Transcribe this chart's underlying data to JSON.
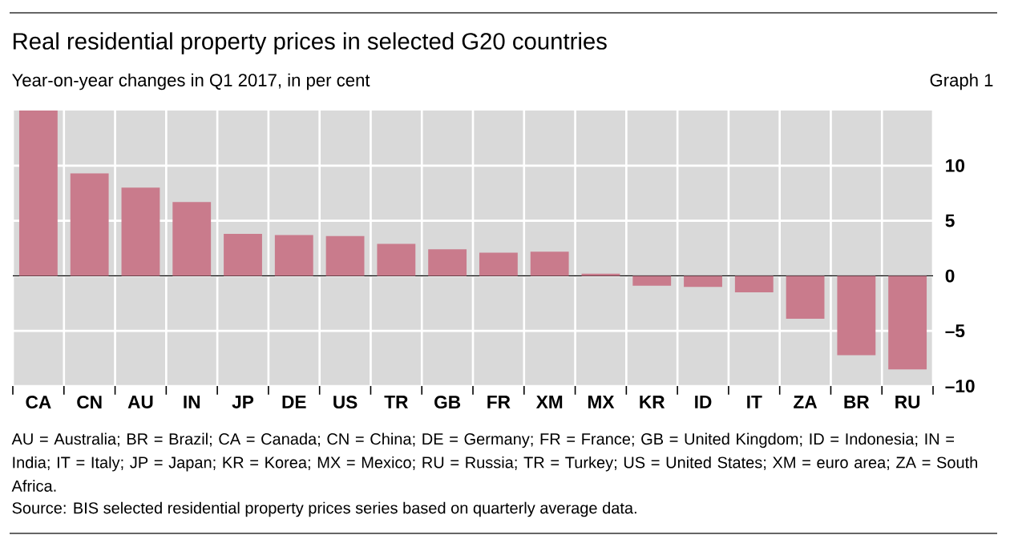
{
  "chart_data": {
    "type": "bar",
    "title": "Real residential property prices in selected G20 countries",
    "subtitle": "Year-on-year changes in Q1 2017, in per cent",
    "categories": [
      "CA",
      "CN",
      "AU",
      "IN",
      "JP",
      "DE",
      "US",
      "TR",
      "GB",
      "FR",
      "XM",
      "MX",
      "KR",
      "ID",
      "IT",
      "ZA",
      "BR",
      "RU"
    ],
    "values": [
      15.0,
      9.3,
      8.0,
      6.7,
      3.8,
      3.7,
      3.6,
      2.9,
      2.4,
      2.1,
      2.2,
      0.2,
      -0.9,
      -1.0,
      -1.5,
      -3.9,
      -7.2,
      -8.5
    ],
    "color": "#c97b8c",
    "ylim": [
      -10,
      15
    ],
    "yticks": [
      {
        "value": -10,
        "label": "–10"
      },
      {
        "value": -5,
        "label": "–5"
      },
      0,
      5,
      10
    ],
    "grid": true,
    "annotations": [
      "Graph 1",
      "AU = Australia; BR = Brazil; CA = Canada; CN = China; DE = Germany; FR = France; GB = United Kingdom; ID = Indonesia; IN = India; IT = Italy; JP = Japan; KR = Korea; MX = Mexico; RU = Russia; TR = Turkey; US = United States; XM = euro area; ZA = South Africa.",
      "Source: BIS selected residential property prices series based on quarterly average data."
    ]
  }
}
